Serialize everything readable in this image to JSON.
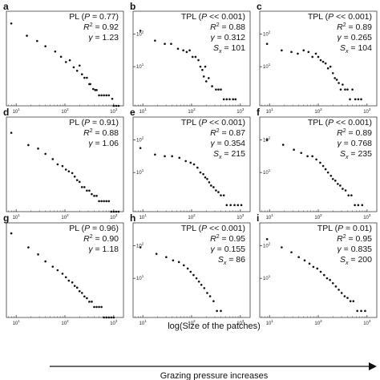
{
  "figure": {
    "xlabel": "log(Size of the patches)",
    "arrow_label": "Grazing pressure increases"
  },
  "chart_data": [
    {
      "type": "scatter",
      "panel": "a",
      "model": "PL",
      "stats": [
        "PL (P = 0.77)",
        "R2 = 0.92",
        "γ = 1.23"
      ],
      "x_log": true,
      "y_log": true,
      "xlim": [
        0.8,
        3.2
      ],
      "ylim": [
        0,
        2.7
      ],
      "xticks": [
        {
          "exp": 1,
          "label": "10"
        },
        {
          "exp": 2,
          "label": "10"
        },
        {
          "exp": 3,
          "label": "10"
        }
      ],
      "yticks": [],
      "log_x": [
        0.9,
        1.22,
        1.43,
        1.6,
        1.8,
        1.92,
        2.02,
        2.1,
        2.18,
        2.25,
        2.3,
        2.35,
        2.4,
        2.45,
        2.5,
        2.52,
        2.58,
        2.62,
        2.65,
        2.7,
        2.75,
        2.8,
        2.85,
        2.9,
        2.97,
        3.0,
        3.05,
        3.1
      ],
      "log_y": [
        2.35,
        2.0,
        1.85,
        1.7,
        1.55,
        1.4,
        1.25,
        1.3,
        1.1,
        1.0,
        1.15,
        0.9,
        0.8,
        0.8,
        0.62,
        0.62,
        0.48,
        0.45,
        0.45,
        0.3,
        0.3,
        0.3,
        0.3,
        0.3,
        0.2,
        0.0,
        0.0,
        0.0
      ]
    },
    {
      "type": "scatter",
      "panel": "b",
      "model": "TPL",
      "stats": [
        "TPL (P << 0.001)",
        "R2 = 0.88",
        "γ = 0.312",
        "Sx = 101"
      ],
      "x_log": true,
      "y_log": true,
      "xlim": [
        0.8,
        3.2
      ],
      "ylim": [
        -0.2,
        2.7
      ],
      "xticks": [
        {
          "exp": 1,
          "label": "10"
        },
        {
          "exp": 2,
          "label": "10"
        },
        {
          "exp": 3,
          "label": "10"
        }
      ],
      "yticks": [
        {
          "exp": 1,
          "label": "10"
        },
        {
          "exp": 2,
          "label": "10"
        }
      ],
      "log_x": [
        0.95,
        1.25,
        1.45,
        1.58,
        1.72,
        1.83,
        1.9,
        1.96,
        2.02,
        2.08,
        2.14,
        2.18,
        2.22,
        2.25,
        2.28,
        2.3,
        2.35,
        2.42,
        2.5,
        2.55,
        2.6,
        2.66,
        2.72,
        2.78,
        2.85,
        2.9
      ],
      "log_y": [
        2.1,
        1.8,
        1.7,
        1.7,
        1.55,
        1.5,
        1.45,
        1.5,
        1.3,
        1.3,
        1.2,
        1.0,
        0.9,
        0.7,
        1.0,
        0.55,
        0.65,
        0.4,
        0.3,
        0.3,
        0.3,
        0.0,
        0.0,
        0.0,
        0.0,
        0.0
      ]
    },
    {
      "type": "scatter",
      "panel": "c",
      "model": "TPL",
      "stats": [
        "TPL (P << 0.001)",
        "R2 = 0.89",
        "γ = 0.265",
        "Sx = 104"
      ],
      "x_log": true,
      "y_log": true,
      "xlim": [
        0.8,
        3.2
      ],
      "ylim": [
        -0.2,
        2.7
      ],
      "xticks": [
        {
          "exp": 1,
          "label": "10"
        },
        {
          "exp": 2,
          "label": "10"
        },
        {
          "exp": 3,
          "label": "10"
        }
      ],
      "yticks": [
        {
          "exp": 1,
          "label": "10"
        },
        {
          "exp": 2,
          "label": "10"
        }
      ],
      "log_x": [
        0.95,
        1.25,
        1.45,
        1.58,
        1.7,
        1.8,
        1.88,
        1.95,
        2.0,
        2.05,
        2.1,
        2.15,
        2.2,
        2.25,
        2.3,
        2.34,
        2.38,
        2.42,
        2.46,
        2.5,
        2.55,
        2.6,
        2.65,
        2.7,
        2.76,
        2.82,
        2.88
      ],
      "log_y": [
        1.7,
        1.5,
        1.45,
        1.4,
        1.5,
        1.45,
        1.3,
        1.4,
        1.3,
        1.2,
        1.15,
        1.1,
        0.95,
        1.0,
        0.8,
        0.65,
        0.6,
        0.5,
        0.3,
        0.45,
        0.3,
        0.3,
        0.0,
        0.3,
        0.0,
        0.0,
        0.0
      ]
    },
    {
      "type": "scatter",
      "panel": "d",
      "model": "PL",
      "stats": [
        "PL (P = 0.91)",
        "R2 = 0.88",
        "γ = 1.06"
      ],
      "x_log": true,
      "y_log": true,
      "xlim": [
        0.8,
        3.2
      ],
      "ylim": [
        0,
        2.7
      ],
      "xticks": [
        {
          "exp": 1,
          "label": "10"
        },
        {
          "exp": 2,
          "label": "10"
        },
        {
          "exp": 3,
          "label": "10"
        }
      ],
      "yticks": [],
      "log_x": [
        0.9,
        1.25,
        1.45,
        1.6,
        1.75,
        1.85,
        1.95,
        2.02,
        2.08,
        2.15,
        2.2,
        2.25,
        2.3,
        2.35,
        2.4,
        2.45,
        2.5,
        2.55,
        2.6,
        2.65,
        2.7,
        2.75,
        2.8,
        2.85,
        2.9,
        2.95,
        3.0,
        3.05,
        3.1
      ],
      "log_y": [
        2.25,
        1.9,
        1.8,
        1.65,
        1.5,
        1.35,
        1.3,
        1.2,
        1.15,
        1.1,
        1.0,
        0.9,
        0.85,
        0.7,
        0.7,
        0.6,
        0.6,
        0.5,
        0.45,
        0.45,
        0.3,
        0.3,
        0.3,
        0.3,
        0.3,
        0.0,
        0.0,
        0.0,
        0.0
      ]
    },
    {
      "type": "scatter",
      "panel": "e",
      "model": "TPL",
      "stats": [
        "TPL (P << 0.001)",
        "R2 = 0.87",
        "γ = 0.354",
        "Sx = 215"
      ],
      "x_log": true,
      "y_log": true,
      "xlim": [
        0.8,
        3.2
      ],
      "ylim": [
        -0.2,
        2.7
      ],
      "xticks": [
        {
          "exp": 1,
          "label": "10"
        },
        {
          "exp": 2,
          "label": "10"
        },
        {
          "exp": 3,
          "label": "10"
        }
      ],
      "yticks": [
        {
          "exp": 1,
          "label": "10"
        },
        {
          "exp": 2,
          "label": "10"
        }
      ],
      "log_x": [
        0.95,
        1.25,
        1.45,
        1.6,
        1.75,
        1.88,
        1.98,
        2.05,
        2.12,
        2.18,
        2.24,
        2.28,
        2.32,
        2.36,
        2.4,
        2.45,
        2.5,
        2.55,
        2.6,
        2.66,
        2.72,
        2.8,
        2.88,
        2.95,
        3.02
      ],
      "log_y": [
        1.75,
        1.55,
        1.5,
        1.5,
        1.45,
        1.35,
        1.3,
        1.25,
        1.15,
        1.0,
        0.95,
        0.85,
        0.8,
        0.7,
        0.6,
        0.55,
        0.45,
        0.4,
        0.3,
        0.3,
        0.0,
        0.0,
        0.0,
        0.0,
        0.0
      ]
    },
    {
      "type": "scatter",
      "panel": "f",
      "model": "TPL",
      "stats": [
        "TPL (P << 0.001)",
        "R2 = 0.89",
        "γ = 0.768",
        "Sx = 235"
      ],
      "x_log": true,
      "y_log": true,
      "xlim": [
        0.8,
        3.2
      ],
      "ylim": [
        -0.2,
        2.7
      ],
      "xticks": [
        {
          "exp": 1,
          "label": "10"
        },
        {
          "exp": 2,
          "label": "10"
        },
        {
          "exp": 3,
          "label": "10"
        }
      ],
      "yticks": [
        {
          "exp": 1,
          "label": "10"
        },
        {
          "exp": 2,
          "label": "10"
        }
      ],
      "log_x": [
        0.95,
        1.28,
        1.5,
        1.65,
        1.78,
        1.88,
        1.96,
        2.04,
        2.1,
        2.15,
        2.2,
        2.26,
        2.3,
        2.35,
        2.4,
        2.45,
        2.5,
        2.56,
        2.62,
        2.68,
        2.75,
        2.82,
        2.9
      ],
      "log_y": [
        2.0,
        1.85,
        1.7,
        1.6,
        1.5,
        1.5,
        1.4,
        1.3,
        1.2,
        1.1,
        1.0,
        0.9,
        0.8,
        0.75,
        0.65,
        0.6,
        0.5,
        0.45,
        0.3,
        0.3,
        0.0,
        0.0,
        0.0
      ]
    },
    {
      "type": "scatter",
      "panel": "g",
      "model": "PL",
      "stats": [
        "PL (P = 0.96)",
        "R2 = 0.90",
        "γ = 1.18"
      ],
      "x_log": true,
      "y_log": true,
      "xlim": [
        0.8,
        3.2
      ],
      "ylim": [
        0,
        2.7
      ],
      "xticks": [
        {
          "exp": 1,
          "label": "10"
        },
        {
          "exp": 2,
          "label": "10"
        },
        {
          "exp": 3,
          "label": "10"
        }
      ],
      "yticks": [],
      "log_x": [
        0.9,
        1.25,
        1.45,
        1.6,
        1.75,
        1.85,
        1.95,
        2.02,
        2.08,
        2.15,
        2.2,
        2.25,
        2.3,
        2.35,
        2.4,
        2.45,
        2.5,
        2.55,
        2.6,
        2.65,
        2.7,
        2.75,
        2.8,
        2.85,
        2.9,
        2.95,
        3.0
      ],
      "log_y": [
        2.4,
        2.0,
        1.8,
        1.6,
        1.45,
        1.35,
        1.25,
        1.15,
        1.05,
        1.0,
        0.9,
        0.85,
        0.75,
        0.7,
        0.6,
        0.55,
        0.45,
        0.45,
        0.3,
        0.3,
        0.3,
        0.3,
        0.0,
        0.0,
        0.0,
        0.0,
        0.0
      ]
    },
    {
      "type": "scatter",
      "panel": "h",
      "model": "TPL",
      "stats": [
        "TPL (P << 0.001)",
        "R2 = 0.95",
        "γ = 0.155",
        "Sx = 86"
      ],
      "x_log": true,
      "y_log": true,
      "xlim": [
        0.8,
        3.2
      ],
      "ylim": [
        -0.2,
        2.7
      ],
      "xticks": [
        {
          "exp": 1,
          "label": "10"
        },
        {
          "exp": 2,
          "label": "10"
        },
        {
          "exp": 3,
          "label": "10"
        }
      ],
      "yticks": [
        {
          "exp": 1,
          "label": "10"
        },
        {
          "exp": 2,
          "label": "10"
        }
      ],
      "log_x": [
        0.95,
        1.28,
        1.48,
        1.62,
        1.74,
        1.84,
        1.92,
        1.98,
        2.04,
        2.1,
        2.15,
        2.2,
        2.26,
        2.32,
        2.38,
        2.45,
        2.52,
        2.6
      ],
      "log_y": [
        1.95,
        1.75,
        1.65,
        1.55,
        1.5,
        1.4,
        1.3,
        1.2,
        1.1,
        1.0,
        0.9,
        0.8,
        0.7,
        0.55,
        0.45,
        0.3,
        0.0,
        0.0
      ]
    },
    {
      "type": "scatter",
      "panel": "i",
      "model": "TPL",
      "stats": [
        "TPL (P = 0.01)",
        "R2 = 0.95",
        "γ = 0.835",
        "Sx = 200"
      ],
      "x_log": true,
      "y_log": true,
      "xlim": [
        0.8,
        3.2
      ],
      "ylim": [
        -0.2,
        2.7
      ],
      "xticks": [
        {
          "exp": 1,
          "label": "10"
        },
        {
          "exp": 2,
          "label": "10"
        },
        {
          "exp": 3,
          "label": "10"
        }
      ],
      "yticks": [
        {
          "exp": 1,
          "label": "10"
        },
        {
          "exp": 2,
          "label": "10"
        }
      ],
      "log_x": [
        0.95,
        1.25,
        1.45,
        1.6,
        1.72,
        1.82,
        1.9,
        1.98,
        2.05,
        2.12,
        2.18,
        2.24,
        2.3,
        2.36,
        2.42,
        2.48,
        2.54,
        2.6,
        2.66,
        2.72,
        2.8,
        2.88,
        2.96
      ],
      "log_y": [
        2.2,
        1.95,
        1.8,
        1.65,
        1.55,
        1.45,
        1.35,
        1.3,
        1.2,
        1.1,
        1.0,
        0.95,
        0.85,
        0.75,
        0.65,
        0.55,
        0.45,
        0.4,
        0.3,
        0.3,
        0.0,
        0.0,
        0.0
      ]
    }
  ]
}
